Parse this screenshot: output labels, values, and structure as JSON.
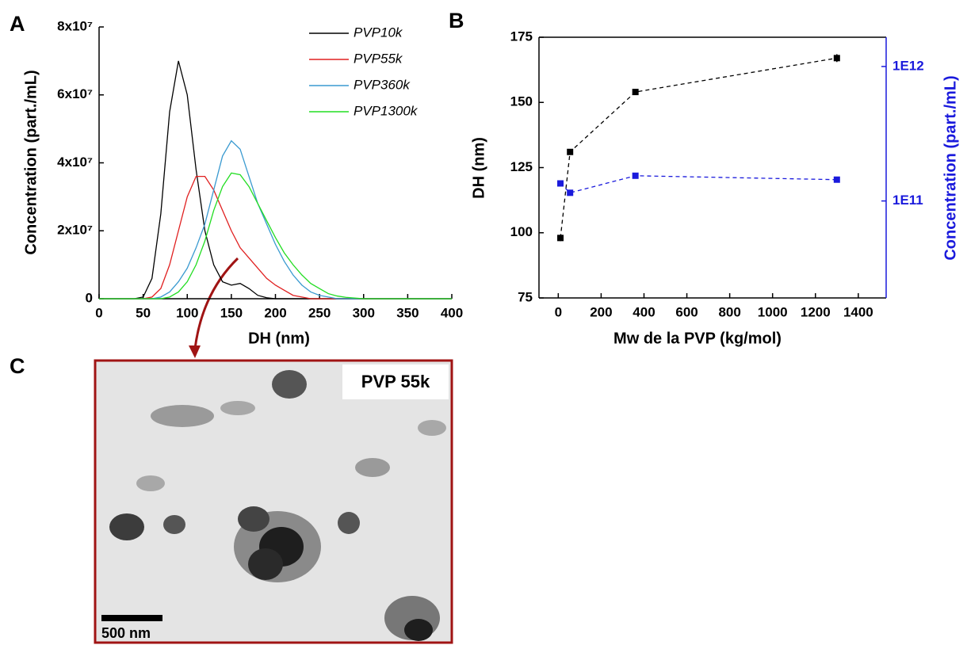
{
  "panel_labels": [
    "A",
    "B",
    "C"
  ],
  "chart_data": [
    {
      "type": "line",
      "xlabel": "DH (nm)",
      "ylabel": "Concentration (part./mL)",
      "xlim": [
        0,
        400
      ],
      "xticks": [
        0,
        50,
        100,
        150,
        200,
        250,
        300,
        350,
        400
      ],
      "ylim": [
        0,
        80000000
      ],
      "yticks": [
        0,
        {
          "value": 20000000,
          "label": "2x10⁷"
        },
        {
          "value": 40000000,
          "label": "4x10⁷"
        },
        {
          "value": 60000000,
          "label": "6x10⁷"
        },
        {
          "value": 80000000,
          "label": "8x10⁷"
        }
      ],
      "legend": "top-right",
      "x": [
        0,
        10,
        20,
        30,
        40,
        50,
        60,
        70,
        80,
        90,
        100,
        110,
        120,
        130,
        140,
        150,
        160,
        170,
        180,
        190,
        200,
        210,
        220,
        230,
        240,
        250,
        260,
        270,
        280,
        290,
        300,
        310,
        320,
        330,
        340,
        350,
        360,
        370,
        380,
        390,
        400
      ],
      "series": [
        {
          "name": "PVP10k",
          "color": "#000000",
          "values": [
            0,
            0,
            0,
            0,
            0,
            500000.0,
            6000000.0,
            25000000.0,
            55000000.0,
            70000000.0,
            60000000.0,
            38000000.0,
            20000000.0,
            10000000.0,
            5000000.0,
            4000000.0,
            4500000.0,
            3000000.0,
            1000000.0,
            300000.0,
            0,
            0,
            0,
            0,
            0,
            0,
            0,
            0,
            0,
            0,
            0,
            0,
            0,
            0,
            0,
            0,
            0,
            0,
            0,
            0,
            0
          ]
        },
        {
          "name": "PVP55k",
          "color": "#e02020",
          "values": [
            0,
            0,
            0,
            0,
            0,
            0,
            500000.0,
            3000000.0,
            10000000.0,
            20000000.0,
            30000000.0,
            36000000.0,
            36000000.0,
            32000000.0,
            26000000.0,
            20000000.0,
            15000000.0,
            12000000.0,
            9000000.0,
            6000000.0,
            4000000.0,
            2500000.0,
            1000000.0,
            500000.0,
            0,
            0,
            0,
            0,
            0,
            0,
            0,
            0,
            0,
            0,
            0,
            0,
            0,
            0,
            0,
            0,
            0
          ]
        },
        {
          "name": "PVP360k",
          "color": "#3a9ad0",
          "values": [
            0,
            0,
            0,
            0,
            0,
            0,
            0,
            500000.0,
            2000000.0,
            5000000.0,
            9000000.0,
            15000000.0,
            22000000.0,
            32000000.0,
            42000000.0,
            46500000.0,
            44000000.0,
            36000000.0,
            28000000.0,
            22000000.0,
            16000000.0,
            11000000.0,
            7000000.0,
            4000000.0,
            2000000.0,
            1000000.0,
            500000.0,
            0,
            0,
            0,
            0,
            0,
            0,
            0,
            0,
            0,
            0,
            0,
            0,
            0,
            0
          ]
        },
        {
          "name": "PVP1300k",
          "color": "#22dd22",
          "values": [
            0,
            0,
            0,
            0,
            0,
            0,
            0,
            0,
            500000.0,
            2000000.0,
            5000000.0,
            10000000.0,
            17000000.0,
            26000000.0,
            33000000.0,
            37000000.0,
            36500000.0,
            33000000.0,
            28000000.0,
            23000000.0,
            18000000.0,
            13500000.0,
            10000000.0,
            7000000.0,
            4500000.0,
            3000000.0,
            1500000.0,
            800000.0,
            400000.0,
            200000.0,
            0,
            0,
            0,
            0,
            0,
            0,
            0,
            0,
            0,
            0,
            0
          ]
        }
      ]
    },
    {
      "type": "line",
      "xlabel": "Mw de la PVP (kg/mol)",
      "ylabel": "DH (nm)",
      "y2label": "Concentration (part./mL)",
      "xlim": [
        -90,
        1530
      ],
      "xticks": [
        0,
        200,
        400,
        600,
        800,
        1000,
        1200,
        1400
      ],
      "ylim": [
        75,
        175
      ],
      "yticks": [
        75,
        100,
        125,
        150,
        175
      ],
      "y2lim": [
        19000000000.0,
        1650000000000.0
      ],
      "y2log": true,
      "y2color": "#1a1adc",
      "y2ticks": [
        {
          "value": 100000000000,
          "label": "1E11"
        },
        {
          "value": 1000000000000,
          "label": "1E12"
        }
      ],
      "frame": "box",
      "dashed": true,
      "markers": true,
      "x": [
        10,
        55,
        360,
        1300
      ],
      "series": [
        {
          "color": "#000000",
          "values": [
            98,
            131,
            154,
            167
          ],
          "errors": [
            1.2,
            0.8,
            1.0,
            1.5
          ]
        },
        {
          "color": "#1a1adc",
          "axis": "y2",
          "values": [
            135000000000.0,
            115000000000.0,
            154000000000.0,
            144000000000.0
          ]
        }
      ]
    }
  ],
  "micrograph": {
    "label": "PVP 55k",
    "scale_bar": "500 nm"
  }
}
